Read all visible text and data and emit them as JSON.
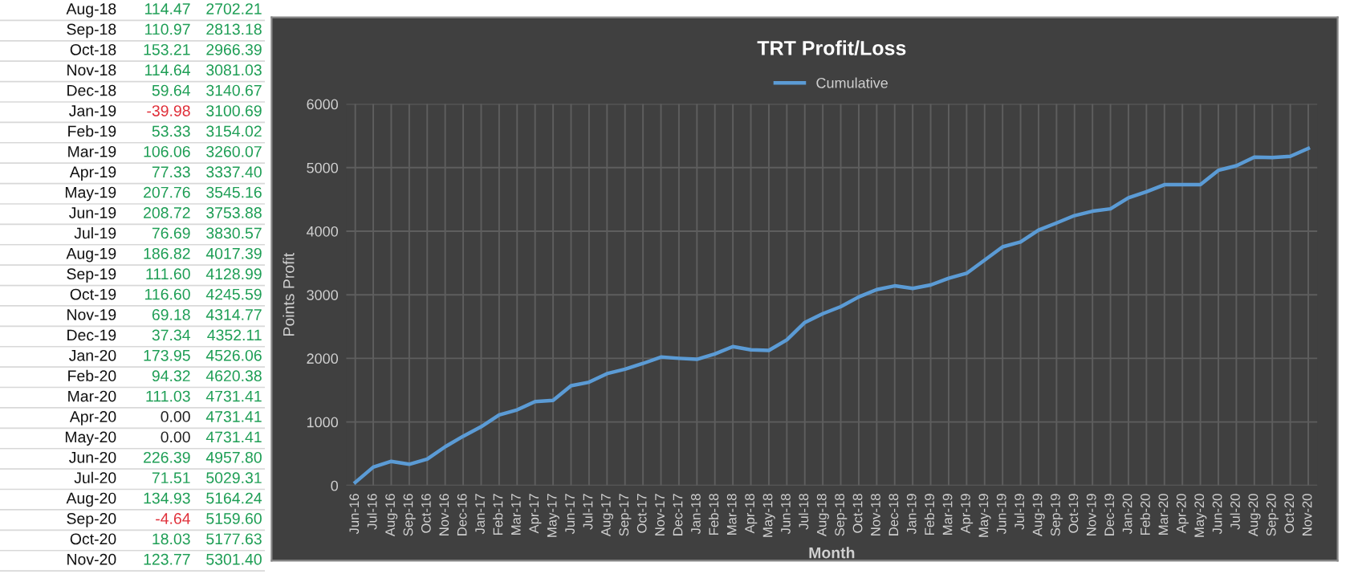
{
  "chart_data": [
    {
      "type": "other",
      "categories": [
        "Aug-18",
        "Sep-18",
        "Oct-18",
        "Nov-18",
        "Dec-18",
        "Jan-19",
        "Feb-19",
        "Mar-19",
        "Apr-19",
        "May-19",
        "Jun-19",
        "Jul-19",
        "Aug-19",
        "Sep-19",
        "Oct-19",
        "Nov-19",
        "Dec-19",
        "Jan-20",
        "Feb-20",
        "Mar-20",
        "Apr-20",
        "May-20",
        "Jun-20",
        "Jul-20",
        "Aug-20",
        "Sep-20",
        "Oct-20",
        "Nov-20"
      ],
      "series": [
        {
          "values": [
            114.47,
            110.97,
            153.21,
            114.64,
            59.64,
            -39.98,
            53.33,
            106.06,
            77.33,
            207.76,
            208.72,
            76.69,
            186.82,
            111.6,
            116.6,
            69.18,
            37.34,
            173.95,
            94.32,
            111.03,
            0.0,
            0.0,
            226.39,
            71.51,
            134.93,
            -4.64,
            18.03,
            123.77
          ],
          "value_labels": [
            "114.47",
            "110.97",
            "153.21",
            "114.64",
            "59.64",
            "-39.98",
            "53.33",
            "106.06",
            "77.33",
            "207.76",
            "208.72",
            "76.69",
            "186.82",
            "111.60",
            "116.60",
            "69.18",
            "37.34",
            "173.95",
            "94.32",
            "111.03",
            "0.00",
            "0.00",
            "226.39",
            "71.51",
            "134.93",
            "-4.64",
            "18.03",
            "123.77"
          ],
          "colors": [
            "#1e9e55",
            "#1e9e55",
            "#1e9e55",
            "#1e9e55",
            "#1e9e55",
            "#e0303a",
            "#1e9e55",
            "#1e9e55",
            "#1e9e55",
            "#1e9e55",
            "#1e9e55",
            "#1e9e55",
            "#1e9e55",
            "#1e9e55",
            "#1e9e55",
            "#1e9e55",
            "#1e9e55",
            "#1e9e55",
            "#1e9e55",
            "#1e9e55",
            "#222222",
            "#222222",
            "#1e9e55",
            "#1e9e55",
            "#1e9e55",
            "#e0303a",
            "#1e9e55",
            "#1e9e55"
          ]
        },
        {
          "values": [
            2702.21,
            2813.18,
            2966.39,
            3081.03,
            3140.67,
            3100.69,
            3154.02,
            3260.07,
            3337.4,
            3545.16,
            3753.88,
            3830.57,
            4017.39,
            4128.99,
            4245.59,
            4314.77,
            4352.11,
            4526.06,
            4620.38,
            4731.41,
            4731.41,
            4731.41,
            4957.8,
            5029.31,
            5164.24,
            5159.6,
            5177.63,
            5301.4
          ],
          "color": "#1e9e55",
          "value_labels": [
            "2702.21",
            "2813.18",
            "2966.39",
            "3081.03",
            "3140.67",
            "3100.69",
            "3154.02",
            "3260.07",
            "3337.40",
            "3545.16",
            "3753.88",
            "3830.57",
            "4017.39",
            "4128.99",
            "4245.59",
            "4314.77",
            "4352.11",
            "4526.06",
            "4620.38",
            "4731.41",
            "4731.41",
            "4731.41",
            "4957.80",
            "5029.31",
            "5164.24",
            "5159.60",
            "5177.63",
            "5301.40"
          ]
        }
      ]
    },
    {
      "type": "line",
      "title": "TRT Profit/Loss",
      "xlabel": "Month",
      "ylabel": "Points Profit",
      "legend": "top",
      "grid": true,
      "ylim": [
        0,
        6000
      ],
      "yticks": [
        0,
        1000,
        2000,
        3000,
        4000,
        5000,
        6000
      ],
      "categories": [
        "Jun-16",
        "Jul-16",
        "Aug-16",
        "Sep-16",
        "Oct-16",
        "Nov-16",
        "Dec-16",
        "Jan-17",
        "Feb-17",
        "Mar-17",
        "Apr-17",
        "May-17",
        "Jun-17",
        "Jul-17",
        "Aug-17",
        "Sep-17",
        "Oct-17",
        "Nov-17",
        "Dec-17",
        "Jan-18",
        "Feb-18",
        "Mar-18",
        "Apr-18",
        "May-18",
        "Jun-18",
        "Jul-18",
        "Aug-18",
        "Sep-18",
        "Oct-18",
        "Nov-18",
        "Dec-18",
        "Jan-19",
        "Feb-19",
        "Mar-19",
        "Apr-19",
        "May-19",
        "Jun-19",
        "Jul-19",
        "Aug-19",
        "Sep-19",
        "Oct-19",
        "Nov-19",
        "Dec-19",
        "Jan-20",
        "Feb-20",
        "Mar-20",
        "Apr-20",
        "May-20",
        "Jun-20",
        "Jul-20",
        "Aug-20",
        "Sep-20",
        "Oct-20",
        "Nov-20"
      ],
      "series": [
        {
          "name": "Cumulative",
          "color": "#5b9bd5",
          "values": [
            50,
            290,
            380,
            335,
            415,
            610,
            775,
            925,
            1110,
            1190,
            1320,
            1340,
            1570,
            1625,
            1760,
            1830,
            1920,
            2020,
            2000,
            1985,
            2070,
            2185,
            2135,
            2125,
            2290,
            2565,
            2702.21,
            2813.18,
            2966.39,
            3081.03,
            3140.67,
            3100.69,
            3154.02,
            3260.07,
            3337.4,
            3545.16,
            3753.88,
            3830.57,
            4017.39,
            4128.99,
            4245.59,
            4314.77,
            4352.11,
            4526.06,
            4620.38,
            4731.41,
            4731.41,
            4731.41,
            4957.8,
            5029.31,
            5164.24,
            5159.6,
            5177.63,
            5301.4
          ]
        }
      ]
    }
  ]
}
